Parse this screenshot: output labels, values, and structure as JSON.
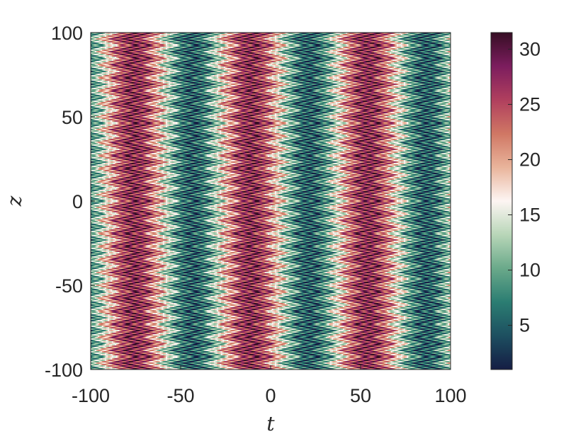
{
  "chart_data": {
    "type": "heatmap",
    "xlabel": "t",
    "ylabel": "z",
    "xlim": [
      -100,
      100
    ],
    "ylim": [
      -100,
      100
    ],
    "x_ticks": [
      "-100",
      "-50",
      "0",
      "50",
      "100"
    ],
    "y_ticks": [
      "100",
      "50",
      "0",
      "-50",
      "-100"
    ],
    "colorbar": {
      "range": [
        1,
        31.5
      ],
      "ticks": [
        "30",
        "25",
        "20",
        "15",
        "10",
        "5"
      ],
      "colormap": "curl",
      "colormap_stops": [
        "#151d44",
        "#1d4f60",
        "#2b7d72",
        "#6aa98a",
        "#b8d6b8",
        "#fdf5f3",
        "#e9b49b",
        "#d07764",
        "#b03f5e",
        "#7c1d5e",
        "#360e24"
      ]
    },
    "pattern": {
      "description_of_field": "zigzag chevron bands in z combined with broad bands in t",
      "t_band_period": 65,
      "z_zigzag_period": 7.7,
      "high_t_centers": [
        -70,
        -5,
        60
      ],
      "low_t_centers": [
        -37,
        28,
        93
      ]
    }
  }
}
